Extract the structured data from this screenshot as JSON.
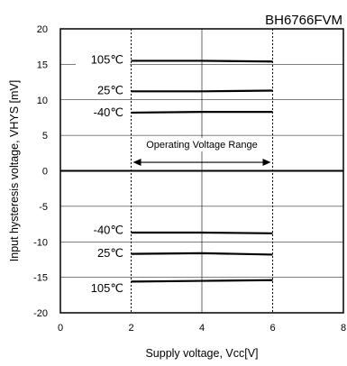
{
  "chart_data": {
    "type": "line",
    "title": "BH6766FVM",
    "xlabel": "Supply voltage, Vcc[V]",
    "ylabel": "Input hysteresis voltage, VHYS [mV]",
    "xlim": [
      0,
      8
    ],
    "ylim": [
      -20,
      20
    ],
    "x_ticks": [
      "0",
      "2",
      "4",
      "6",
      "8"
    ],
    "y_ticks": [
      "20",
      "15",
      "10",
      "5",
      "0",
      "-5",
      "-10",
      "-15",
      "-20"
    ],
    "grid": true,
    "range_lines": [
      2,
      6
    ],
    "annotation": {
      "text": "Operating Voltage Range",
      "from": 2,
      "to": 6,
      "y": 1.2
    },
    "series": [
      {
        "label": "105℃",
        "x": [
          2,
          4,
          6
        ],
        "y": [
          15.5,
          15.5,
          15.4
        ],
        "label_y": 15.6
      },
      {
        "label": "25℃",
        "x": [
          2,
          4,
          6
        ],
        "y": [
          11.2,
          11.2,
          11.3
        ],
        "label_y": 11.3
      },
      {
        "label": "-40℃",
        "x": [
          2,
          4,
          6
        ],
        "y": [
          8.2,
          8.3,
          8.3
        ],
        "label_y": 8.2
      },
      {
        "label": "-40℃",
        "x": [
          2,
          4,
          6
        ],
        "y": [
          -8.7,
          -8.7,
          -8.8
        ],
        "label_y": -8.4
      },
      {
        "label": "25℃",
        "x": [
          2,
          4,
          6
        ],
        "y": [
          -11.7,
          -11.6,
          -11.8
        ],
        "label_y": -11.6
      },
      {
        "label": "105℃",
        "x": [
          2,
          4,
          6
        ],
        "y": [
          -15.6,
          -15.5,
          -15.4
        ],
        "label_y": -16.6
      }
    ]
  }
}
